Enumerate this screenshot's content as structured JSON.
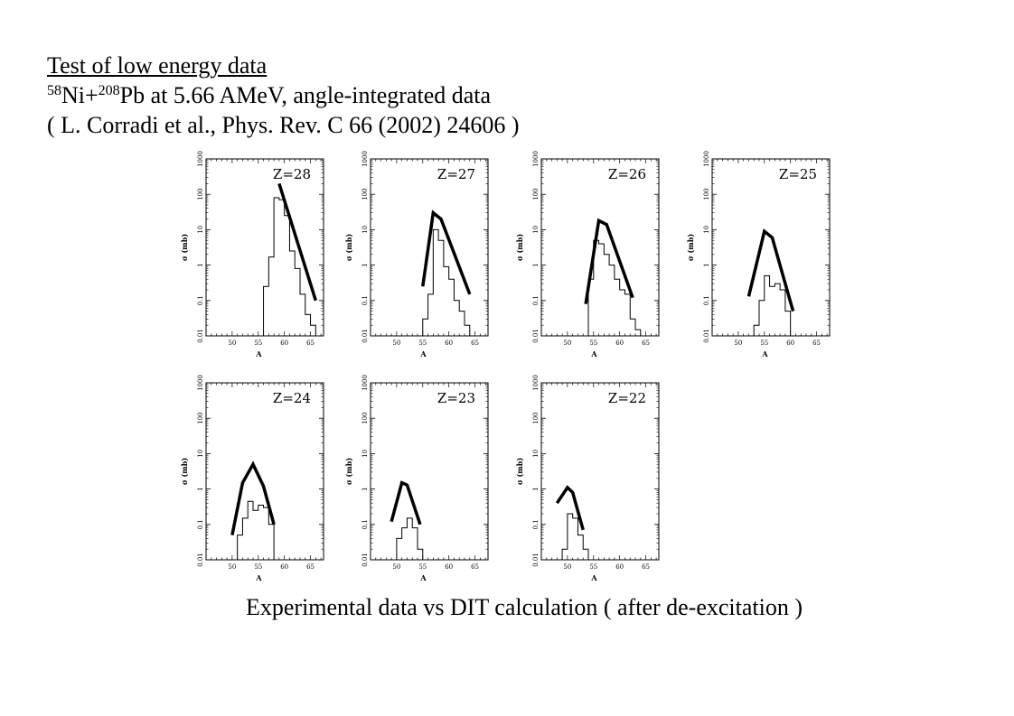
{
  "header": {
    "heading": "Test of low energy data",
    "reaction_mass_ni": "58",
    "reaction_el_ni": "Ni+",
    "reaction_mass_pb": "208",
    "reaction_rest": "Pb at 5.66 AMeV, angle-integrated data",
    "reference": "( L. Corradi et al., Phys. Rev. C 66 (2002) 24606 )"
  },
  "caption": "Experimental data vs DIT calculation ( after de-excitation )",
  "chart_data": [
    {
      "type": "line",
      "label": "Z=28",
      "xlabel": "A",
      "ylabel": "σ (mb)",
      "xlim": [
        45,
        67.5
      ],
      "ylim": [
        0.01,
        1000
      ],
      "yscale": "log",
      "xticks": [
        "50",
        "55",
        "60",
        "65"
      ],
      "yticks": [
        "0.01",
        "0.1",
        "1",
        "10",
        "100",
        "1000"
      ],
      "histogram": {
        "edges": [
          56,
          57,
          58,
          59,
          60,
          61,
          62,
          63,
          64,
          65,
          66
        ],
        "values": [
          0.25,
          1.7,
          80,
          70,
          25,
          2.5,
          0.8,
          0.15,
          0.04,
          0.02
        ]
      },
      "calculation": {
        "x": [
          59,
          66
        ],
        "y": [
          200,
          0.1
        ]
      }
    },
    {
      "type": "line",
      "label": "Z=27",
      "xlabel": "A",
      "ylabel": "σ (mb)",
      "xlim": [
        45,
        67.5
      ],
      "ylim": [
        0.01,
        1000
      ],
      "yscale": "log",
      "xticks": [
        "50",
        "55",
        "60",
        "65"
      ],
      "yticks": [
        "0.01",
        "0.1",
        "1",
        "10",
        "100",
        "1000"
      ],
      "histogram": {
        "edges": [
          55,
          56,
          57,
          58,
          59,
          60,
          61,
          62,
          63,
          64,
          65
        ],
        "values": [
          0.03,
          0.15,
          10,
          5,
          0.9,
          0.4,
          0.1,
          0.05,
          0.02,
          0.01
        ]
      },
      "calculation": {
        "x": [
          55,
          57,
          58.5,
          64
        ],
        "y": [
          0.25,
          30,
          20,
          0.15
        ]
      }
    },
    {
      "type": "line",
      "label": "Z=26",
      "xlabel": "A",
      "ylabel": "σ (mb)",
      "xlim": [
        45,
        67.5
      ],
      "ylim": [
        0.01,
        1000
      ],
      "yscale": "log",
      "xticks": [
        "50",
        "55",
        "60",
        "65"
      ],
      "yticks": [
        "0.01",
        "0.1",
        "1",
        "10",
        "100",
        "1000"
      ],
      "histogram": {
        "edges": [
          54,
          55,
          56,
          57,
          58,
          59,
          60,
          61,
          62,
          63,
          64
        ],
        "values": [
          0.4,
          5,
          4,
          2,
          1,
          0.4,
          0.2,
          0.15,
          0.03,
          0.015
        ]
      },
      "calculation": {
        "x": [
          53.5,
          56,
          57.5,
          62.5
        ],
        "y": [
          0.08,
          18,
          14,
          0.12
        ]
      }
    },
    {
      "type": "line",
      "label": "Z=25",
      "xlabel": "A",
      "ylabel": "σ (mb)",
      "xlim": [
        45,
        67.5
      ],
      "ylim": [
        0.01,
        1000
      ],
      "yscale": "log",
      "xticks": [
        "50",
        "55",
        "60",
        "65"
      ],
      "yticks": [
        "0.01",
        "0.1",
        "1",
        "10",
        "100",
        "1000"
      ],
      "histogram": {
        "edges": [
          53,
          54,
          55,
          56,
          57,
          58,
          59,
          60
        ],
        "values": [
          0.02,
          0.1,
          0.5,
          0.25,
          0.3,
          0.2,
          0.05
        ]
      },
      "calculation": {
        "x": [
          52,
          55,
          56.5,
          60.5
        ],
        "y": [
          0.13,
          9,
          6,
          0.05
        ]
      }
    },
    {
      "type": "line",
      "label": "Z=24",
      "xlabel": "A",
      "ylabel": "σ (mb)",
      "xlim": [
        45,
        67.5
      ],
      "ylim": [
        0.01,
        1000
      ],
      "yscale": "log",
      "xticks": [
        "50",
        "55",
        "60",
        "65"
      ],
      "yticks": [
        "0.01",
        "0.1",
        "1",
        "10",
        "100",
        "1000"
      ],
      "histogram": {
        "edges": [
          51,
          52,
          53,
          54,
          55,
          56,
          57,
          58
        ],
        "values": [
          0.05,
          0.15,
          0.45,
          0.25,
          0.35,
          0.3,
          0.1
        ]
      },
      "calculation": {
        "x": [
          50,
          52,
          54,
          56,
          58
        ],
        "y": [
          0.05,
          1.5,
          5,
          1.2,
          0.1
        ]
      }
    },
    {
      "type": "line",
      "label": "Z=23",
      "xlabel": "A",
      "ylabel": "σ (mb)",
      "xlim": [
        45,
        67.5
      ],
      "ylim": [
        0.01,
        1000
      ],
      "yscale": "log",
      "xticks": [
        "50",
        "55",
        "60",
        "65"
      ],
      "yticks": [
        "0.01",
        "0.1",
        "1",
        "10",
        "100",
        "1000"
      ],
      "histogram": {
        "edges": [
          50,
          51,
          52,
          53,
          54,
          55
        ],
        "values": [
          0.04,
          0.08,
          0.15,
          0.08,
          0.02
        ]
      },
      "calculation": {
        "x": [
          49,
          51,
          52,
          54.5
        ],
        "y": [
          0.12,
          1.5,
          1.3,
          0.1
        ]
      }
    },
    {
      "type": "line",
      "label": "Z=22",
      "xlabel": "A",
      "ylabel": "σ (mb)",
      "xlim": [
        45,
        67.5
      ],
      "ylim": [
        0.01,
        1000
      ],
      "yscale": "log",
      "xticks": [
        "50",
        "55",
        "60",
        "65"
      ],
      "yticks": [
        "0.01",
        "0.1",
        "1",
        "10",
        "100",
        "1000"
      ],
      "histogram": {
        "edges": [
          49,
          50,
          51,
          52,
          53,
          54
        ],
        "values": [
          0.02,
          0.2,
          0.15,
          0.05,
          0.02
        ]
      },
      "calculation": {
        "x": [
          48,
          50,
          51,
          53
        ],
        "y": [
          0.4,
          1.1,
          0.8,
          0.07
        ]
      }
    }
  ]
}
